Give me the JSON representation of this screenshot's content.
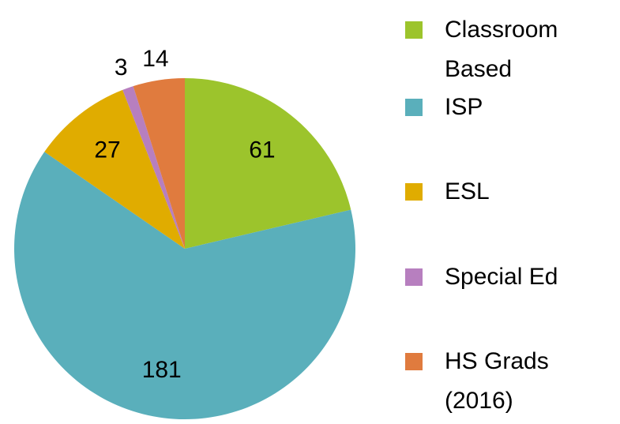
{
  "chart_data": {
    "type": "pie",
    "categories": [
      "Classroom Based",
      "ISP",
      "ESL",
      "Special Ed",
      "HS Grads (2016)"
    ],
    "values": [
      61,
      181,
      27,
      3,
      14
    ],
    "colors": [
      "#9cc42c",
      "#5aafbb",
      "#e0ac00",
      "#b77fbf",
      "#e07b3e"
    ]
  }
}
